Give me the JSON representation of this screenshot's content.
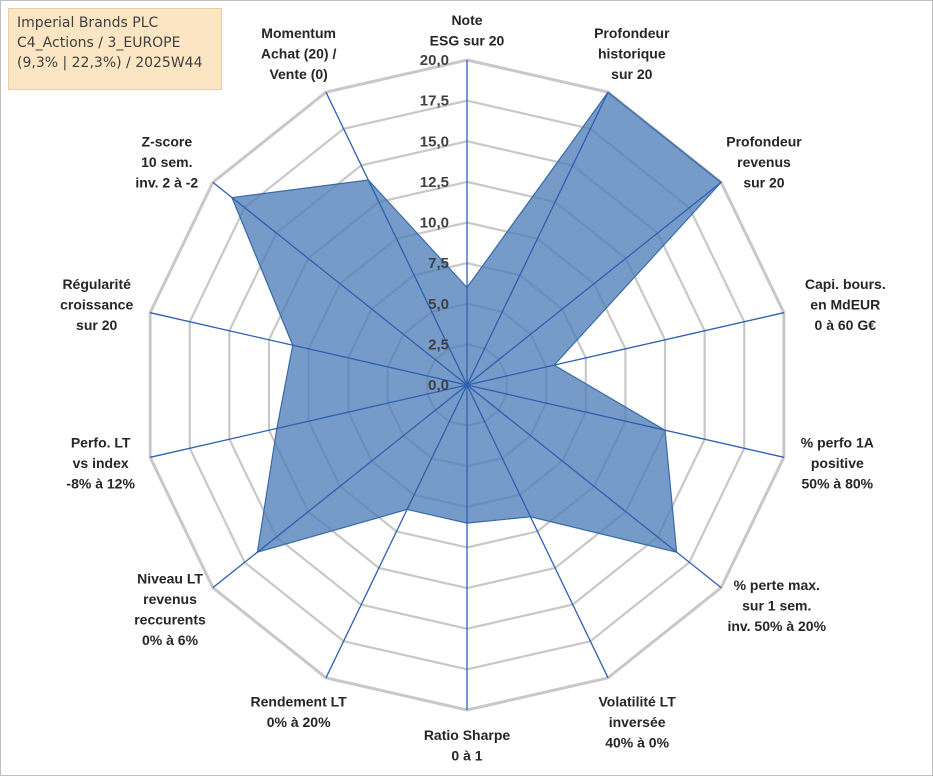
{
  "info_box": {
    "line1": "Imperial Brands PLC",
    "line2": "C4_Actions / 3_EUROPE",
    "line3": "(9,3% | 22,3%) / 2025W44"
  },
  "colors": {
    "fill": "#4f7fb8",
    "stroke": "#3a6aa8",
    "grid": "#c8c8c8",
    "spoke": "#2f5fb0"
  },
  "chart_data": {
    "type": "radar",
    "title": "",
    "range": [
      0,
      20
    ],
    "grid_step": 2.5,
    "ticks": [
      "0,0",
      "2,5",
      "5,0",
      "7,5",
      "10,0",
      "12,5",
      "15,0",
      "17,5",
      "20,0"
    ],
    "axes": [
      {
        "label": [
          "Note",
          "ESG sur 20"
        ],
        "value": 6
      },
      {
        "label": [
          "Profondeur",
          "historique",
          "sur 20"
        ],
        "value": 20
      },
      {
        "label": [
          "Profondeur",
          "revenus",
          "sur 20"
        ],
        "value": 20
      },
      {
        "label": [
          "Capi. bours.",
          "en MdEUR",
          "0 à 60 G€"
        ],
        "value": 5.5
      },
      {
        "label": [
          "% perfo 1A",
          "positive",
          "50% à 80%"
        ],
        "value": 12.5
      },
      {
        "label": [
          "% perte max.",
          "sur 1 sem.",
          "inv. 50% à 20%"
        ],
        "value": 16.5
      },
      {
        "label": [
          "Volatilité LT",
          "inversée",
          "40% à 0%"
        ],
        "value": 9
      },
      {
        "label": [
          "Ratio Sharpe",
          "0 à 1"
        ],
        "value": 8.5
      },
      {
        "label": [
          "Rendement LT",
          "0% à 20%"
        ],
        "value": 8.5
      },
      {
        "label": [
          "Niveau LT",
          "revenus",
          "reccurents",
          "0% à 6%"
        ],
        "value": 16.5
      },
      {
        "label": [
          "Perfo. LT",
          "vs index",
          "-8% à 12%"
        ],
        "value": 12
      },
      {
        "label": [
          "Régularité",
          "croissance",
          "sur 20"
        ],
        "value": 11
      },
      {
        "label": [
          "Z-score",
          "10 sem.",
          "inv. 2 à -2"
        ],
        "value": 18.5
      },
      {
        "label": [
          "Momentum",
          "Achat (20) /",
          "Vente (0)"
        ],
        "value": 14
      }
    ]
  }
}
